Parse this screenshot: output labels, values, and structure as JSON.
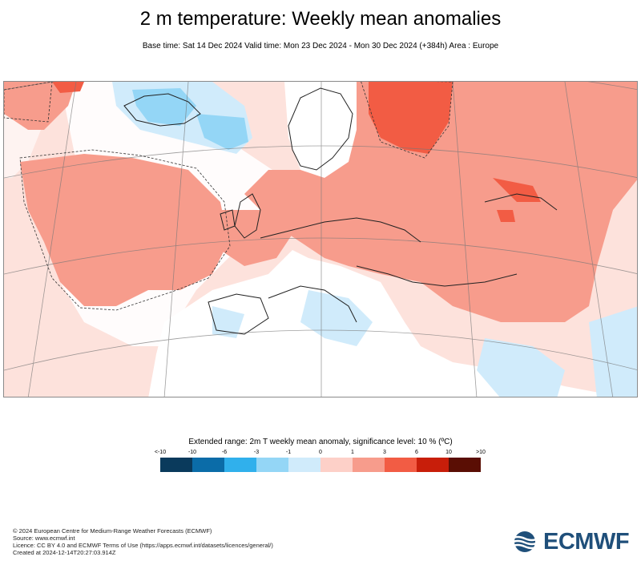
{
  "header": {
    "title": "2 m temperature: Weekly mean anomalies",
    "subtitle": "Base time: Sat 14 Dec 2024 Valid time: Mon 23 Dec 2024 - Mon 30 Dec 2024 (+384h) Area : Europe"
  },
  "legend": {
    "title": "Extended range: 2m T weekly mean anomaly, significance level: 10 % (ºC)",
    "ticks": [
      "<-10",
      "-10",
      "-6",
      "-3",
      "-1",
      "0",
      "1",
      "3",
      "6",
      "10",
      ">10"
    ],
    "colors": [
      "#0a3a5c",
      "#0b6ca8",
      "#30b0ec",
      "#94d6f6",
      "#d0ebfb",
      "#fdd0c8",
      "#f79c8c",
      "#f25c44",
      "#c81e0a",
      "#8a1608",
      "#5a0e04"
    ],
    "swatch_colors": [
      "#0a3a5c",
      "#0b6ca8",
      "#30b0ec",
      "#94d6f6",
      "#d0ebfb",
      "#fdd0c8",
      "#f79c8c",
      "#f25c44",
      "#c81e0a",
      "#5a0e04"
    ]
  },
  "footer": {
    "line1": "© 2024 European Centre for Medium-Range Weather Forecasts (ECMWF)",
    "line2": "Source: www.ecmwf.int",
    "line3": "Licence: CC BY 4.0 and ECMWF Terms of Use (https://apps.ecmwf.int/datasets/licences/general/)",
    "line4": "Created at 2024-12-14T20:27:03.914Z"
  },
  "logo": {
    "text": "ECMWF",
    "icon": "ecmwf-logo-icon"
  }
}
